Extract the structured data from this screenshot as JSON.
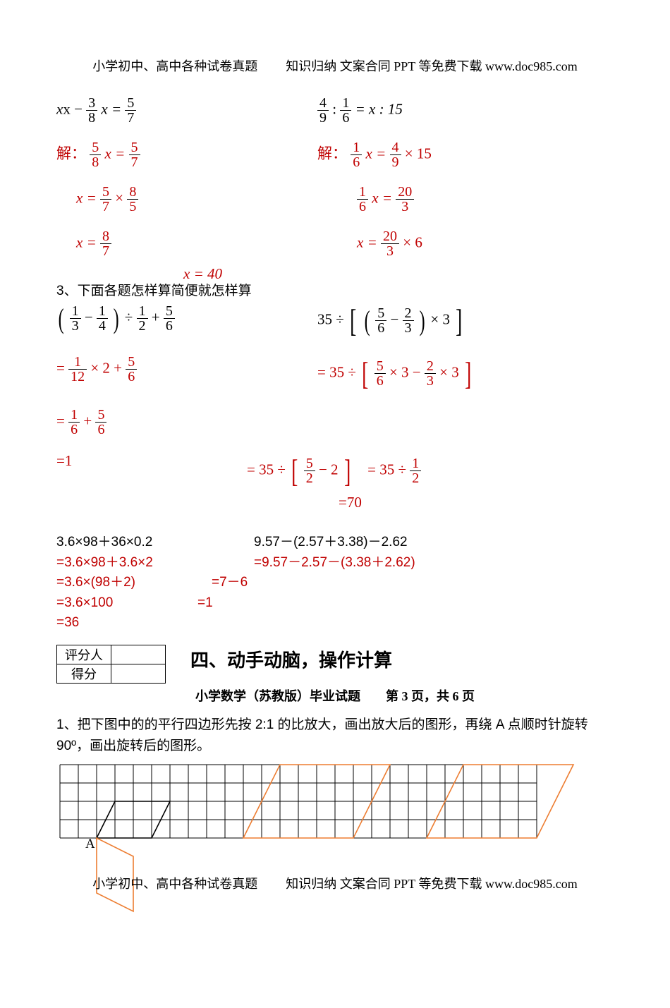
{
  "header": {
    "left": "小学初中、高中各种试卷真题",
    "right": "知识归纳 文案合同 PPT 等免费下载  www.doc985.com"
  },
  "equations": {
    "left": {
      "line1_pre": "x −",
      "line1_f1_num": "3",
      "line1_f1_den": "8",
      "line1_mid": " x =",
      "line1_f2_num": "5",
      "line1_f2_den": "7",
      "solve_label": "解：",
      "s1_f1_num": "5",
      "s1_f1_den": "8",
      "s1_mid": " x =",
      "s1_f2_num": "5",
      "s1_f2_den": "7",
      "s2_pre": "x =",
      "s2_f1_num": "5",
      "s2_f1_den": "7",
      "s2_mid": " × ",
      "s2_f2_num": "8",
      "s2_f2_den": "5",
      "s3_pre": "x =",
      "s3_f1_num": "8",
      "s3_f1_den": "7"
    },
    "right": {
      "line1_f1_num": "4",
      "line1_f1_den": "9",
      "line1_mid": " : ",
      "line1_f2_num": "1",
      "line1_f2_den": "6",
      "line1_post": " = x : 15",
      "solve_label": "解：",
      "s1_f1_num": "1",
      "s1_f1_den": "6",
      "s1_mid": " x =",
      "s1_f2_num": "4",
      "s1_f2_den": "9",
      "s1_post": " × 15",
      "s2_f1_num": "1",
      "s2_f1_den": "6",
      "s2_mid": " x =",
      "s2_f2_num": "20",
      "s2_f2_den": "3",
      "s3_pre": "x =",
      "s3_f1_num": "20",
      "s3_f1_den": "3",
      "s3_post": " × 6",
      "s4": "x = 40"
    }
  },
  "q3_title": "3、下面各题怎样算简便就怎样算",
  "q3": {
    "leftA_f1n": "1",
    "leftA_f1d": "3",
    "leftA_f2n": "1",
    "leftA_f2d": "4",
    "leftA_div": " ÷ ",
    "leftA_f3n": "1",
    "leftA_f3d": "2",
    "leftA_plus": " + ",
    "leftA_f4n": "5",
    "leftA_f4d": "6",
    "leftB_pre": "= ",
    "leftB_f1n": "1",
    "leftB_f1d": "12",
    "leftB_mid": " × 2 + ",
    "leftB_f2n": "5",
    "leftB_f2d": "6",
    "leftC_pre": "= ",
    "leftC_f1n": "1",
    "leftC_f1d": "6",
    "leftC_mid": " + ",
    "leftC_f2n": "5",
    "leftC_f2d": "6",
    "leftD": "=1",
    "rightA_pre": "35 ÷ ",
    "rightA_f1n": "5",
    "rightA_f1d": "6",
    "rightA_minus": " − ",
    "rightA_f2n": "2",
    "rightA_f2d": "3",
    "rightA_post": " × 3",
    "rightB_pre": "= 35 ÷ ",
    "rightB_f1n": "5",
    "rightB_f1d": "6",
    "rightB_mid": " × 3 − ",
    "rightB_f2n": "2",
    "rightB_f2d": "3",
    "rightB_post": " × 3",
    "rightC_pre": "= 35 ÷ ",
    "rightC_f1n": "5",
    "rightC_f1d": "2",
    "rightC_post": " − 2",
    "rightC2_pre": "= 35 ÷ ",
    "rightC2_f1n": "1",
    "rightC2_f1d": "2",
    "rightD": "=70"
  },
  "simple": {
    "l1": "3.6×98＋36×0.2",
    "l2": "=3.6×98＋3.6×2",
    "l3": "=3.6×(98＋2)",
    "l4": "=3.6×100",
    "l5": "=36",
    "r1": "9.57－(2.57＋3.38)－2.62",
    "r2": "=9.57－2.57－(3.38＋2.62)",
    "r3": "=7－6",
    "r4": "=1"
  },
  "score": {
    "a": "评分人",
    "b": "得分"
  },
  "section4": "四、动手动脑，操作计算",
  "pagenum": {
    "a": "小学数学（苏教版）毕业试题",
    "b": "第",
    "c": "3",
    "d": "页，共",
    "e": "6",
    "f": "页"
  },
  "q4": {
    "text": "1、把下图中的的平行四边形先按 2:1 的比放大，画出放大后的图形，再绕 A 点顺时针旋转 90º，画出旋转后的图形。",
    "label_A": "A"
  },
  "footer": {
    "left": "小学初中、高中各种试卷真题",
    "right": "知识归纳 文案合同 PPT 等免费下载  www.doc985.com"
  },
  "grid": {
    "cell": 26,
    "cols": 26,
    "rows": 4,
    "origin_x": 0,
    "stroke": "#000000",
    "shape_color": "#ed7d31",
    "A_col": 2,
    "A_row": 4,
    "orig_top_left": {
      "c": 3,
      "r": 2
    },
    "orig_top_right": {
      "c": 6,
      "r": 2
    },
    "orig_bot_left": {
      "c": 2,
      "r": 4
    },
    "orig_bot_right": {
      "c": 5,
      "r": 4
    },
    "big_top_left": {
      "c": 12,
      "r": 0
    },
    "big_top_right": {
      "c": 18,
      "r": 0
    },
    "big_bot_left": {
      "c": 10,
      "r": 4
    },
    "big_bot_right": {
      "c": 16,
      "r": 4
    },
    "big3_top_left": {
      "c": 22,
      "r": 0
    },
    "big3_top_right": {
      "c": 28,
      "r": 0
    },
    "big3_bot_left": {
      "c": 20,
      "r": 4
    },
    "big3_bot_right": {
      "c": 26,
      "r": 4
    },
    "rot_p1": {
      "c": 2,
      "r": 4
    },
    "rot_p2": {
      "c": 2,
      "r": 7
    },
    "rot_p3": {
      "c": 4,
      "r": 8
    },
    "rot_p4": {
      "c": 4,
      "r": 5
    }
  }
}
